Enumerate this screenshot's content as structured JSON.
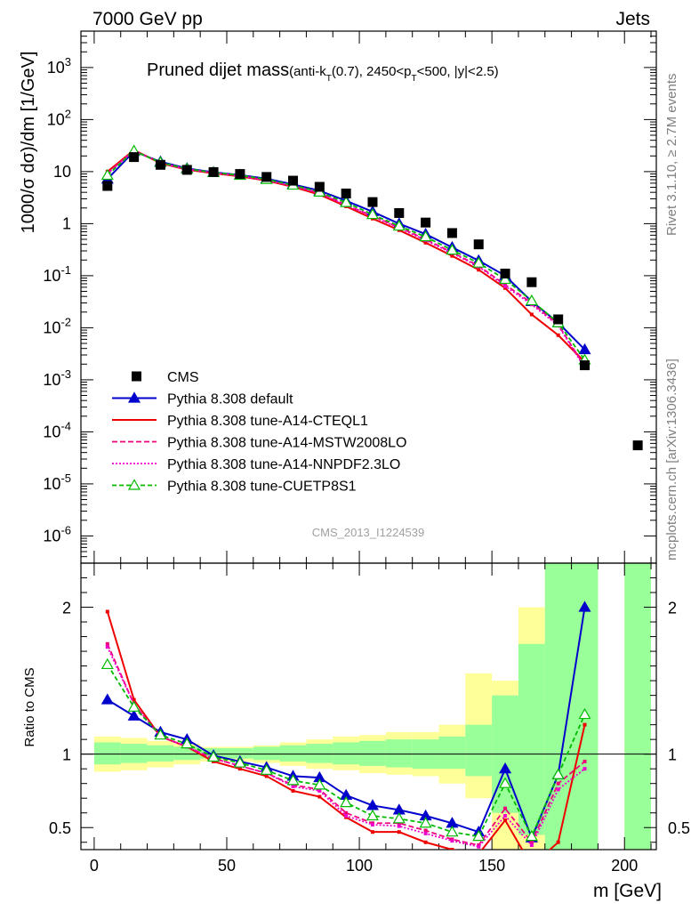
{
  "header": {
    "left": "7000 GeV pp",
    "right": "Jets",
    "side_rivet": "Rivet 3.1.10, ≥ 2.7M events",
    "side_mcplots": "mcplots.cern.ch [arXiv:1306.3436]",
    "watermark": "CMS_2013_I1224539"
  },
  "chart_data": [
    {
      "type": "scatter",
      "panel": "main",
      "title": "Pruned dijet mass",
      "title_suffix": "(anti-k_T(0.7), 2450<p_T<500, |y|<2.5)",
      "ylabel": "1000/σ dσ)/dm [1/GeV]",
      "yscale": "log",
      "ylim": [
        3e-07,
        5000
      ],
      "xlim": [
        -5,
        212
      ],
      "y_ticks": [
        {
          "exp": "3",
          "v": 1000
        },
        {
          "exp": "2",
          "v": 100
        },
        {
          "label": "10",
          "v": 10
        },
        {
          "label": "1",
          "v": 1
        },
        {
          "exp": "-1",
          "v": 0.1
        },
        {
          "exp": "-2",
          "v": 0.01
        },
        {
          "exp": "-3",
          "v": 0.001
        },
        {
          "exp": "-4",
          "v": 0.0001
        },
        {
          "exp": "-5",
          "v": 1e-05
        },
        {
          "exp": "-6",
          "v": 1e-06
        }
      ],
      "legend_placement": "bottom-left",
      "cms": {
        "name": "CMS",
        "x": [
          5,
          15,
          25,
          35,
          45,
          55,
          65,
          75,
          85,
          95,
          105,
          115,
          125,
          135,
          145,
          155,
          165,
          175,
          185,
          205
        ],
        "y": [
          5.3,
          19,
          13.5,
          10.8,
          9.8,
          9.0,
          7.9,
          6.7,
          5.1,
          3.8,
          2.6,
          1.6,
          1.05,
          0.66,
          0.4,
          0.11,
          0.075,
          0.0145,
          0.0019,
          5.5e-05
        ]
      },
      "series": [
        {
          "name": "Pythia 8.308 default",
          "color": "#0000cc",
          "dash": "none",
          "marker": "tri-filled",
          "y": [
            7.2,
            24.5,
            15.5,
            11.5,
            9.7,
            8.6,
            7.3,
            5.7,
            4.3,
            2.75,
            1.7,
            1.0,
            0.63,
            0.35,
            0.195,
            0.1,
            0.032,
            0.0125,
            0.0038
          ]
        },
        {
          "name": "Pythia 8.308 tune-A14-CTEQL1",
          "color": "#ee0000",
          "dash": "none",
          "marker": "square-small",
          "y": [
            10.0,
            26.0,
            14.5,
            10.9,
            9.3,
            8.1,
            6.7,
            5.1,
            3.6,
            2.15,
            1.25,
            0.75,
            0.43,
            0.24,
            0.13,
            0.058,
            0.018,
            0.0072,
            0.0022
          ]
        },
        {
          "name": "Pythia 8.308 tune-A14-MSTW2008LO",
          "color": "#ee0077",
          "dash": "6,3",
          "marker": "square-small",
          "y": [
            9.3,
            25.5,
            14.8,
            11.1,
            9.5,
            8.3,
            6.9,
            5.3,
            3.9,
            2.3,
            1.4,
            0.85,
            0.5,
            0.28,
            0.155,
            0.067,
            0.03,
            0.0115,
            0.0018
          ]
        },
        {
          "name": "Pythia 8.308 tune-A14-NNPDF2.3LO",
          "color": "#ee00cc",
          "dash": "2,2",
          "marker": "square-small",
          "y": [
            9.1,
            25.5,
            14.8,
            11.1,
            9.5,
            8.3,
            6.9,
            5.25,
            3.85,
            2.25,
            1.38,
            0.82,
            0.48,
            0.27,
            0.15,
            0.063,
            0.028,
            0.011,
            0.0017
          ]
        },
        {
          "name": "Pythia 8.308 tune-CUETP8S1",
          "color": "#00bb00",
          "dash": "5,3",
          "marker": "tri-open",
          "y": [
            8.5,
            25.0,
            15.0,
            11.3,
            9.6,
            8.5,
            7.1,
            5.5,
            4.05,
            2.55,
            1.5,
            0.9,
            0.56,
            0.31,
            0.175,
            0.085,
            0.033,
            0.0125,
            0.0024
          ]
        }
      ]
    },
    {
      "type": "line",
      "panel": "ratio",
      "ylabel": "Ratio to CMS",
      "xlabel": "m [GeV]",
      "ylim": [
        0.35,
        2.3
      ],
      "xlim": [
        -5,
        212
      ],
      "x_ticks": [
        0,
        50,
        100,
        150,
        200
      ],
      "y_ticks": [
        0.5,
        1,
        2
      ],
      "ref_line": 1,
      "bins_edges": [
        0,
        10,
        20,
        30,
        40,
        50,
        60,
        70,
        80,
        90,
        100,
        110,
        120,
        130,
        140,
        150,
        160,
        170,
        180,
        190,
        200,
        210
      ],
      "band_stat": [
        [
          0.93,
          1.08
        ],
        [
          0.94,
          1.07
        ],
        [
          0.95,
          1.06
        ],
        [
          0.96,
          1.05
        ],
        [
          0.97,
          1.04
        ],
        [
          0.97,
          1.04
        ],
        [
          0.96,
          1.05
        ],
        [
          0.95,
          1.06
        ],
        [
          0.94,
          1.07
        ],
        [
          0.93,
          1.08
        ],
        [
          0.92,
          1.09
        ],
        [
          0.91,
          1.1
        ],
        [
          0.9,
          1.1
        ],
        [
          0.9,
          1.12
        ],
        [
          0.85,
          1.2
        ],
        [
          0.6,
          1.4
        ],
        [
          0.45,
          1.75
        ],
        [
          0.3,
          2.3
        ],
        [
          0.3,
          2.3
        ],
        null,
        [
          0.3,
          2.3
        ]
      ],
      "band_total": [
        [
          0.88,
          1.12
        ],
        [
          0.89,
          1.11
        ],
        [
          0.91,
          1.09
        ],
        [
          0.93,
          1.07
        ],
        [
          0.95,
          1.05
        ],
        [
          0.95,
          1.05
        ],
        [
          0.94,
          1.06
        ],
        [
          0.92,
          1.08
        ],
        [
          0.9,
          1.1
        ],
        [
          0.89,
          1.12
        ],
        [
          0.87,
          1.13
        ],
        [
          0.86,
          1.15
        ],
        [
          0.85,
          1.15
        ],
        [
          0.8,
          1.2
        ],
        [
          0.7,
          1.55
        ],
        [
          0.35,
          1.5
        ],
        [
          0.35,
          2.0
        ],
        [
          0.3,
          2.3
        ],
        [
          0.3,
          2.3
        ],
        null,
        [
          0.3,
          2.3
        ]
      ],
      "series": [
        {
          "name": "Pythia 8.308 default",
          "y": [
            1.37,
            1.26,
            1.15,
            1.1,
            0.99,
            0.95,
            0.91,
            0.85,
            0.84,
            0.72,
            0.65,
            0.62,
            0.58,
            0.53,
            0.47,
            0.9,
            0.43,
            0.86,
            2.0
          ]
        },
        {
          "name": "Pythia 8.308 tune-A14-CTEQL1",
          "y": [
            1.97,
            1.37,
            1.12,
            1.05,
            0.95,
            0.9,
            0.85,
            0.75,
            0.71,
            0.57,
            0.47,
            0.47,
            0.4,
            0.35,
            0.32,
            0.55,
            0.24,
            0.4,
            1.2
          ]
        },
        {
          "name": "Pythia 8.308 tune-A14-MSTW2008LO",
          "y": [
            1.75,
            1.34,
            1.12,
            1.05,
            0.97,
            0.92,
            0.87,
            0.79,
            0.76,
            0.6,
            0.53,
            0.53,
            0.48,
            0.42,
            0.38,
            0.63,
            0.4,
            0.8,
            0.95
          ]
        },
        {
          "name": "Pythia 8.308 tune-A14-NNPDF2.3LO",
          "y": [
            1.73,
            1.34,
            1.12,
            1.05,
            0.97,
            0.92,
            0.87,
            0.78,
            0.75,
            0.58,
            0.52,
            0.51,
            0.46,
            0.41,
            0.37,
            0.58,
            0.38,
            0.76,
            0.9
          ]
        },
        {
          "name": "Pythia 8.308 tune-CUETP8S1",
          "y": [
            1.61,
            1.32,
            1.13,
            1.07,
            0.98,
            0.94,
            0.89,
            0.82,
            0.79,
            0.67,
            0.58,
            0.56,
            0.53,
            0.47,
            0.44,
            0.8,
            0.44,
            0.86,
            1.27
          ]
        }
      ]
    }
  ]
}
